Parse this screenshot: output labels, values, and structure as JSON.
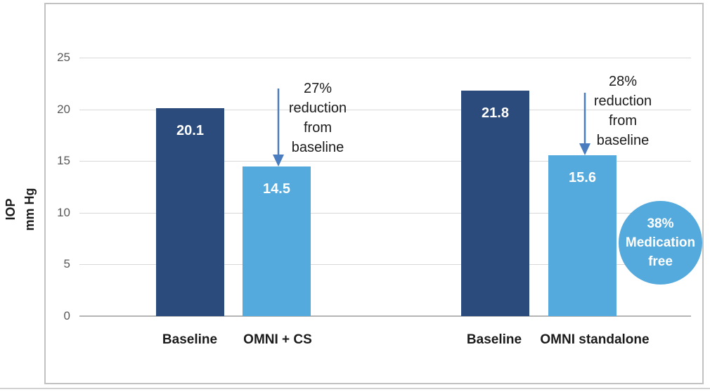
{
  "chart_data": {
    "type": "bar",
    "title": "",
    "ylabel": "IOP\nmm Hg",
    "ylim": [
      0,
      25
    ],
    "yticks": [
      25,
      20,
      15,
      10,
      5,
      0
    ],
    "grid": true,
    "groups": [
      {
        "bars": [
          {
            "category": "Baseline",
            "value": 20.1,
            "value_label": "20.1",
            "color": "dark"
          },
          {
            "category": "OMNI + CS",
            "value": 14.5,
            "value_label": "14.5",
            "color": "light"
          }
        ],
        "annotation": "27%\nreduction\nfrom\nbaseline"
      },
      {
        "bars": [
          {
            "category": "Baseline",
            "value": 21.8,
            "value_label": "21.8",
            "color": "dark"
          },
          {
            "category": "OMNI standalone",
            "value": 15.6,
            "value_label": "15.6",
            "color": "light"
          }
        ],
        "annotation": "28%\nreduction\nfrom\nbaseline"
      }
    ],
    "badge": {
      "lines": "38%\nMedication\nfree"
    },
    "colors": {
      "dark_bar": "#2a4b7c",
      "light_bar": "#54a9dd",
      "arrow": "#4a7dc0",
      "badge": "#54a9dd",
      "gridline": "#d9d9d9",
      "axis_line": "#b5b5b5",
      "tick_text": "#595959",
      "label_text": "#1b1b1b",
      "bar_value_text": "#ffffff"
    }
  }
}
